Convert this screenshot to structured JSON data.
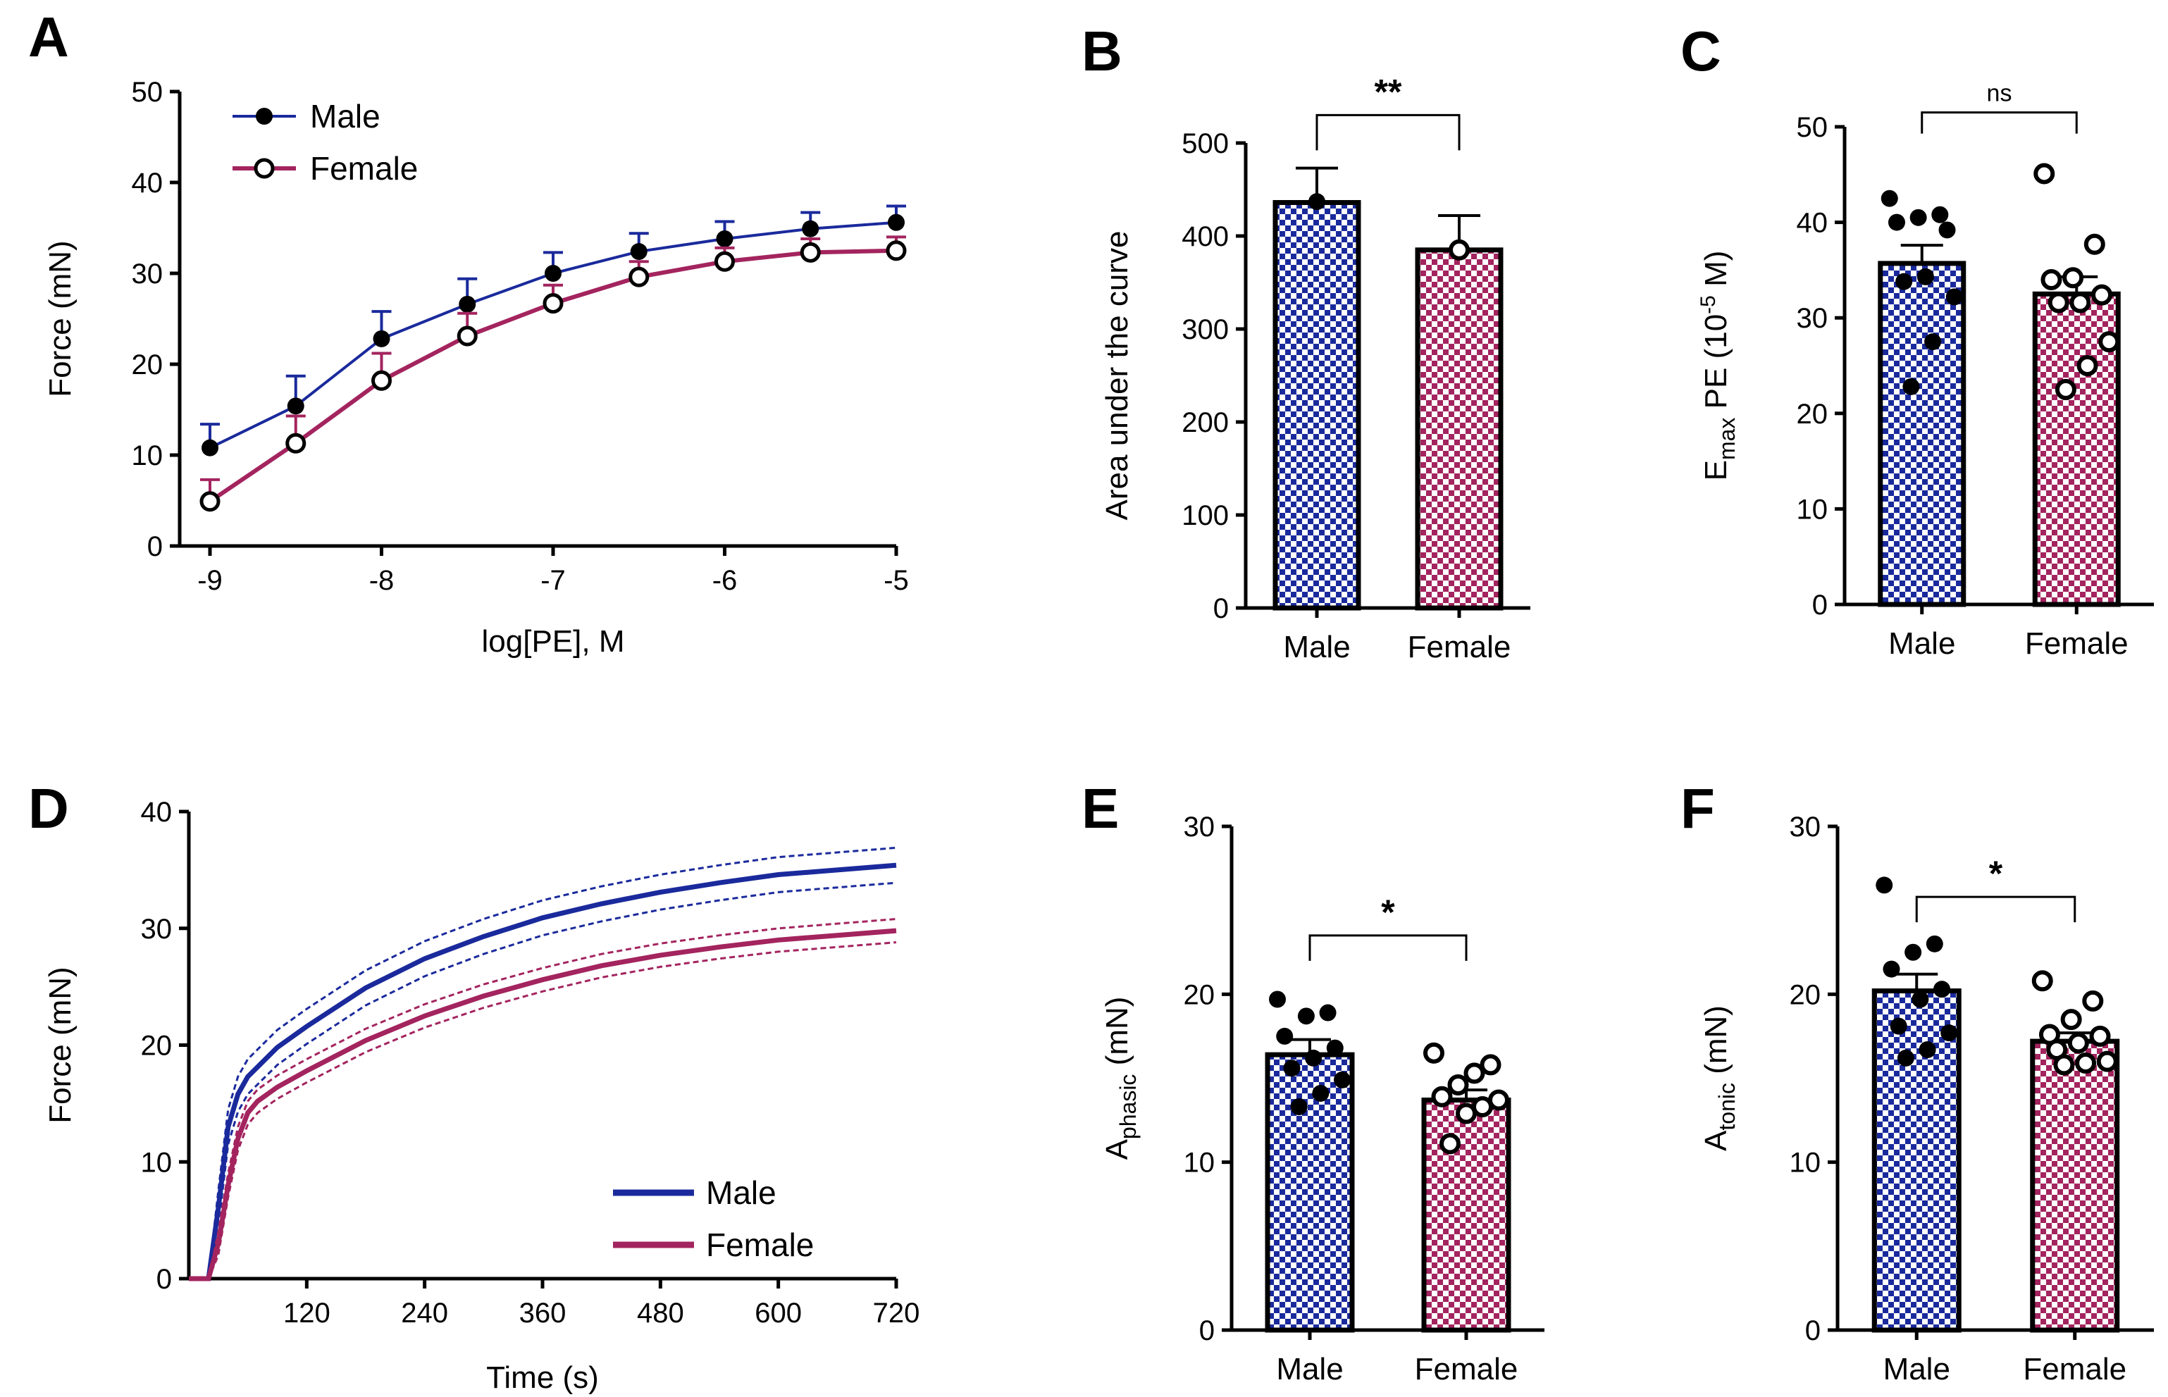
{
  "colors": {
    "male": "#1a2a9c",
    "female": "#a3245e",
    "axis": "#000000"
  },
  "chart_data": [
    {
      "id": "A",
      "panel": "A",
      "type": "line",
      "xlabel": "log[PE], M",
      "ylabel": "Force (mN)",
      "xlim": [
        -9,
        -5
      ],
      "ylim": [
        0,
        50
      ],
      "xticks": [
        -9,
        -8,
        -7,
        -6,
        -5
      ],
      "xtick_labels": [
        "-9",
        "-8",
        "-7",
        "-6",
        "-5"
      ],
      "yticks": [
        0,
        10,
        20,
        30,
        40,
        50
      ],
      "ytick_labels": [
        "0",
        "10",
        "20",
        "30",
        "40",
        "50"
      ],
      "legend": {
        "position": "top-left"
      },
      "series": [
        {
          "name": "Male",
          "marker": "filled-circle",
          "x": [
            -9,
            -8.5,
            -8,
            -7.5,
            -7,
            -6.5,
            -6,
            -5.5,
            -5
          ],
          "y": [
            10.8,
            15.4,
            22.8,
            26.6,
            30.0,
            32.4,
            33.8,
            34.9,
            35.6
          ],
          "err": [
            2.6,
            3.3,
            3.0,
            2.8,
            2.3,
            2.0,
            1.9,
            1.8,
            1.8
          ]
        },
        {
          "name": "Female",
          "marker": "open-circle",
          "x": [
            -9,
            -8.5,
            -8,
            -7.5,
            -7,
            -6.5,
            -6,
            -5.5,
            -5
          ],
          "y": [
            4.9,
            11.3,
            18.2,
            23.1,
            26.7,
            29.6,
            31.3,
            32.3,
            32.5
          ],
          "err": [
            2.4,
            3.0,
            3.0,
            2.5,
            2.0,
            1.7,
            1.5,
            1.5,
            1.5
          ]
        }
      ]
    },
    {
      "id": "B",
      "panel": "B",
      "type": "bar",
      "categories": [
        "Male",
        "Female"
      ],
      "values": [
        436,
        385
      ],
      "sem": [
        37,
        37
      ],
      "points": [
        [
          437
        ],
        [
          385
        ]
      ],
      "ylabel": "Area under the curve",
      "ylim": [
        0,
        500
      ],
      "yticks": [
        0,
        100,
        200,
        300,
        400,
        500
      ],
      "ytick_labels": [
        "0",
        "100",
        "200",
        "300",
        "400",
        "500"
      ],
      "significance": "**"
    },
    {
      "id": "C",
      "panel": "C",
      "type": "bar",
      "categories": [
        "Male",
        "Female"
      ],
      "values": [
        35.7,
        32.5
      ],
      "sem": [
        1.9,
        1.8
      ],
      "points": [
        [
          42.5,
          40.8,
          40.5,
          40.0,
          39.2,
          34.3,
          33.8,
          32.2,
          27.5,
          22.8
        ],
        [
          45.1,
          37.7,
          34.2,
          34.0,
          32.4,
          31.6,
          31.6,
          27.5,
          25.0,
          22.5
        ]
      ],
      "ylabel": "E",
      "ylabel_sub": "max",
      "ylabel_rest": " PE (10",
      "ylabel_exp": "-5",
      "ylabel_end": " M)",
      "ylim": [
        0,
        50
      ],
      "yticks": [
        0,
        10,
        20,
        30,
        40,
        50
      ],
      "ytick_labels": [
        "0",
        "10",
        "20",
        "30",
        "40",
        "50"
      ],
      "significance": "ns"
    },
    {
      "id": "D",
      "panel": "D",
      "type": "line",
      "xlabel": "Time (s)",
      "ylabel": "Force (mN)",
      "xlim": [
        0,
        720
      ],
      "ylim": [
        0,
        40
      ],
      "xticks": [
        120,
        240,
        360,
        480,
        600,
        720
      ],
      "xtick_labels": [
        "120",
        "240",
        "360",
        "480",
        "600",
        "720"
      ],
      "yticks": [
        0,
        10,
        20,
        30,
        40
      ],
      "ytick_labels": [
        "0",
        "10",
        "20",
        "30",
        "40"
      ],
      "legend": {
        "position": "bottom-right"
      },
      "series": [
        {
          "name": "Male",
          "x": [
            0,
            20,
            30,
            40,
            50,
            60,
            90,
            120,
            180,
            240,
            300,
            360,
            420,
            480,
            540,
            600,
            660,
            720
          ],
          "y": [
            0,
            0,
            6,
            13,
            15.8,
            17.3,
            19.8,
            21.6,
            24.9,
            27.4,
            29.3,
            30.9,
            32.1,
            33.1,
            33.9,
            34.6,
            35.0,
            35.4
          ],
          "band": 1.5
        },
        {
          "name": "Female",
          "x": [
            0,
            20,
            30,
            40,
            50,
            60,
            70,
            90,
            120,
            180,
            240,
            300,
            360,
            420,
            480,
            540,
            600,
            660,
            720
          ],
          "y": [
            0,
            0,
            3,
            8,
            12,
            14.2,
            15.2,
            16.4,
            17.8,
            20.4,
            22.5,
            24.2,
            25.6,
            26.8,
            27.7,
            28.4,
            29.0,
            29.4,
            29.8
          ],
          "band": 1.0
        }
      ]
    },
    {
      "id": "E",
      "panel": "E",
      "type": "bar",
      "categories": [
        "Male",
        "Female"
      ],
      "values": [
        16.4,
        13.7
      ],
      "sem": [
        0.9,
        0.6
      ],
      "points": [
        [
          19.7,
          18.9,
          18.7,
          17.5,
          16.8,
          16.2,
          15.6,
          14.9,
          14.1,
          13.3
        ],
        [
          16.5,
          15.8,
          15.3,
          14.6,
          13.9,
          13.7,
          13.3,
          12.9,
          11.1
        ]
      ],
      "ylabel": "A",
      "ylabel_sub": "phasic",
      "ylabel_end": " (mN)",
      "ylim": [
        0,
        30
      ],
      "yticks": [
        0,
        10,
        20,
        30
      ],
      "ytick_labels": [
        "0",
        "10",
        "20",
        "30"
      ],
      "significance": "*"
    },
    {
      "id": "F",
      "panel": "F",
      "type": "bar",
      "categories": [
        "Male",
        "Female"
      ],
      "values": [
        20.2,
        17.2
      ],
      "sem": [
        1.0,
        0.5
      ],
      "points": [
        [
          26.5,
          23.0,
          22.5,
          21.5,
          20.3,
          19.7,
          18.1,
          17.7,
          16.7,
          16.2
        ],
        [
          20.8,
          19.6,
          18.5,
          17.6,
          17.5,
          17.1,
          16.7,
          16.0,
          15.9,
          15.8
        ]
      ],
      "ylabel": "A",
      "ylabel_sub": "tonic",
      "ylabel_end": " (mN)",
      "ylim": [
        0,
        30
      ],
      "yticks": [
        0,
        10,
        20,
        30
      ],
      "ytick_labels": [
        "0",
        "10",
        "20",
        "30"
      ],
      "significance": "*"
    }
  ]
}
